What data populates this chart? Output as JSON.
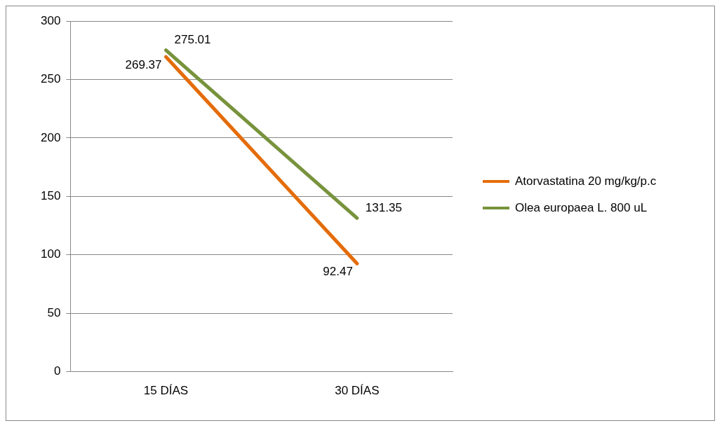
{
  "chart_data": {
    "type": "line",
    "categories": [
      "15 DÍAS",
      "30 DÍAS"
    ],
    "series": [
      {
        "name": "Atorvastatina 20 mg/kg/p.c",
        "color": "#e46c0a",
        "values": [
          269.37,
          92.47
        ]
      },
      {
        "name": "Olea europaea L. 800 uL",
        "color": "#77933c",
        "values": [
          275.01,
          131.35
        ]
      }
    ],
    "ylim": [
      0,
      300
    ],
    "yticks": [
      0,
      50,
      100,
      150,
      200,
      250,
      300
    ],
    "grid": "y",
    "legend": "right",
    "marker": "none",
    "line_style": "solid",
    "data_labels": true
  }
}
